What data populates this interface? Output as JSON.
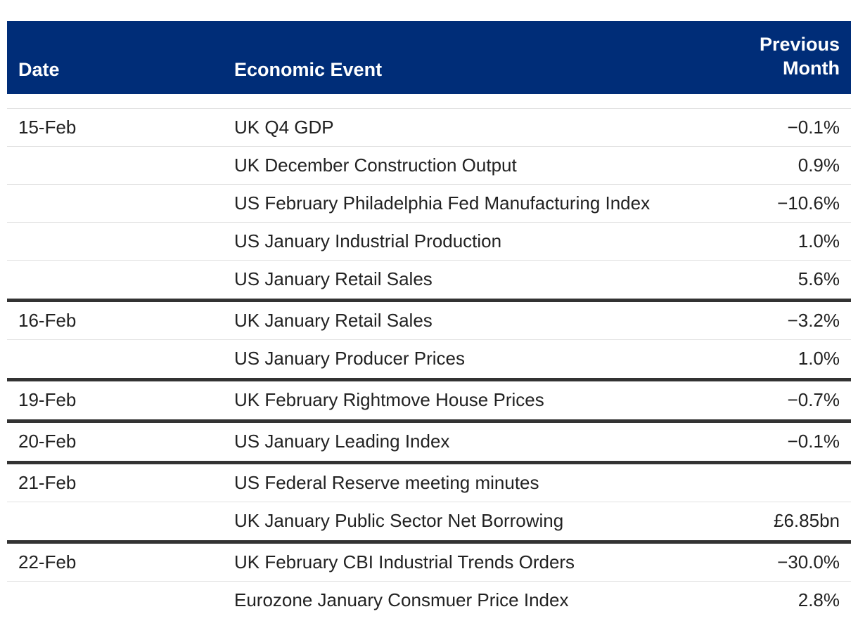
{
  "header": {
    "date": "Date",
    "event": "Economic Event",
    "previous_line1": "Previous",
    "previous_line2": "Month"
  },
  "groups": [
    {
      "date": "15-Feb",
      "rows": [
        {
          "event": "UK Q4 GDP",
          "previous": "−0.1%"
        },
        {
          "event": "UK December Construction Output",
          "previous": "0.9%"
        },
        {
          "event": "US February Philadelphia Fed Manufacturing Index",
          "previous": "−10.6%"
        },
        {
          "event": "US January Industrial Production",
          "previous": "1.0%"
        },
        {
          "event": "US January Retail Sales",
          "previous": "5.6%"
        }
      ]
    },
    {
      "date": "16-Feb",
      "rows": [
        {
          "event": "UK January Retail Sales",
          "previous": "−3.2%"
        },
        {
          "event": "US January Producer Prices",
          "previous": "1.0%"
        }
      ]
    },
    {
      "date": "19-Feb",
      "rows": [
        {
          "event": "UK February Rightmove House Prices",
          "previous": "−0.7%"
        }
      ]
    },
    {
      "date": "20-Feb",
      "rows": [
        {
          "event": "US January Leading Index",
          "previous": "−0.1%"
        }
      ]
    },
    {
      "date": "21-Feb",
      "rows": [
        {
          "event": "US Federal Reserve meeting minutes",
          "previous": ""
        },
        {
          "event": "UK January Public Sector Net Borrowing",
          "previous": "£6.85bn"
        }
      ]
    },
    {
      "date": "22-Feb",
      "rows": [
        {
          "event": "UK February CBI Industrial Trends Orders",
          "previous": "−30.0%"
        },
        {
          "event": "Eurozone January Consmuer Price Index",
          "previous": "2.8%"
        }
      ]
    }
  ]
}
